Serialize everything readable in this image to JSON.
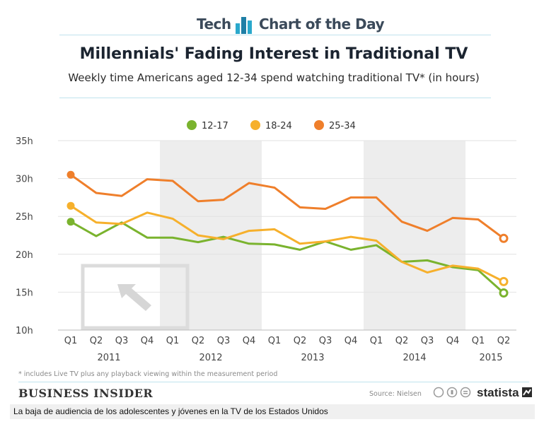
{
  "header": {
    "left_text": "Tech",
    "right_text": "Chart of the Day",
    "icon": "bar-chart-icon"
  },
  "chart_data": {
    "type": "line",
    "title": "Millennials' Fading Interest in Traditional TV",
    "subtitle": "Weekly time Americans aged 12-34 spend watching traditional TV* (in hours)",
    "x": [
      "Q1",
      "Q2",
      "Q3",
      "Q4",
      "Q1",
      "Q2",
      "Q3",
      "Q4",
      "Q1",
      "Q2",
      "Q3",
      "Q4",
      "Q1",
      "Q2",
      "Q3",
      "Q4",
      "Q1",
      "Q2"
    ],
    "years": [
      {
        "label": "2011",
        "quarters": 4
      },
      {
        "label": "2012",
        "quarters": 4
      },
      {
        "label": "2013",
        "quarters": 4
      },
      {
        "label": "2014",
        "quarters": 4
      },
      {
        "label": "2015",
        "quarters": 2
      }
    ],
    "ylim": [
      10,
      35
    ],
    "yticks": [
      "10h",
      "15h",
      "20h",
      "25h",
      "30h",
      "35h"
    ],
    "series": [
      {
        "name": "12-17",
        "color": "#7ab32e",
        "values": [
          24.3,
          22.4,
          24.2,
          22.2,
          22.2,
          21.6,
          22.3,
          21.4,
          21.3,
          20.6,
          21.7,
          20.6,
          21.2,
          19.0,
          19.2,
          18.3,
          17.9,
          14.9
        ]
      },
      {
        "name": "18-24",
        "color": "#f6b02c",
        "values": [
          26.4,
          24.2,
          24.0,
          25.5,
          24.7,
          22.5,
          22.0,
          23.1,
          23.3,
          21.4,
          21.7,
          22.3,
          21.8,
          19.0,
          17.6,
          18.5,
          18.1,
          16.4
        ]
      },
      {
        "name": "25-34",
        "color": "#ef7f2b",
        "values": [
          30.5,
          28.1,
          27.7,
          29.9,
          29.7,
          27.0,
          27.2,
          29.4,
          28.8,
          26.2,
          26.0,
          27.5,
          27.5,
          24.3,
          23.1,
          24.8,
          24.6,
          22.1
        ]
      }
    ],
    "legend_position": "top-center",
    "grid": true
  },
  "footnote": "* includes Live TV plus any playback viewing within the measurement period",
  "footer": {
    "brand": "BUSINESS INSIDER",
    "source": "Source: Nielsen",
    "statista": "statista"
  },
  "caption": "La baja de audiencia de los adolescentes y jóvenes en la TV de los Estados Unidos"
}
